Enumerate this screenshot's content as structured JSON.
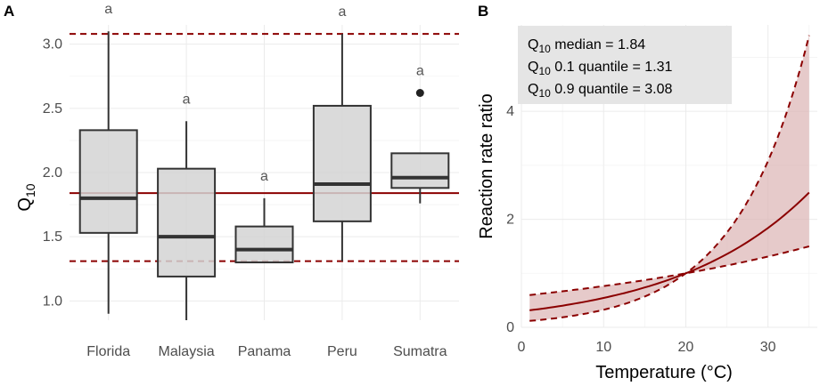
{
  "panels": {
    "a": "A",
    "b": "B"
  },
  "colors": {
    "dark_red": "#8b0000",
    "box_fill": "#d3d3d3",
    "band_fill": "#dcb3b3",
    "box_stroke": "#333333"
  },
  "chart_data": [
    {
      "type": "box",
      "panel": "A",
      "ylabel_base": "Q",
      "ylabel_sub": "10",
      "xlabel": "",
      "ylim": [
        0.85,
        3.15
      ],
      "yticks": [
        1.0,
        1.5,
        2.0,
        2.5,
        3.0
      ],
      "ytick_labels": [
        "1.0",
        "1.5",
        "2.0",
        "2.5",
        "3.0"
      ],
      "categories": [
        "Florida",
        "Malaysia",
        "Panama",
        "Peru",
        "Sumatra"
      ],
      "boxes": [
        {
          "category": "Florida",
          "min": 0.9,
          "q1": 1.53,
          "median": 1.8,
          "q3": 2.33,
          "max": 3.1,
          "outliers": [],
          "group": "a"
        },
        {
          "category": "Malaysia",
          "min": 0.85,
          "q1": 1.19,
          "median": 1.5,
          "q3": 2.03,
          "max": 2.4,
          "outliers": [],
          "group": "a"
        },
        {
          "category": "Panama",
          "min": 1.3,
          "q1": 1.3,
          "median": 1.4,
          "q3": 1.58,
          "max": 1.8,
          "outliers": [],
          "group": "a"
        },
        {
          "category": "Peru",
          "min": 1.31,
          "q1": 1.62,
          "median": 1.91,
          "q3": 2.52,
          "max": 3.08,
          "outliers": [],
          "group": "a"
        },
        {
          "category": "Sumatra",
          "min": 1.76,
          "q1": 1.88,
          "median": 1.96,
          "q3": 2.15,
          "max": 2.15,
          "outliers": [
            2.62
          ],
          "group": "a"
        }
      ],
      "reference_lines": [
        {
          "label": "median",
          "value": 1.84,
          "style": "solid"
        },
        {
          "label": "0.1 quantile",
          "value": 1.31,
          "style": "dashed"
        },
        {
          "label": "0.9 quantile",
          "value": 3.08,
          "style": "dashed"
        }
      ]
    },
    {
      "type": "line",
      "panel": "B",
      "xlabel": "Temperature (°C)",
      "ylabel": "Reaction rate ratio",
      "xlim": [
        0,
        36
      ],
      "ylim": [
        0,
        5.6
      ],
      "xticks": [
        0,
        10,
        20,
        30
      ],
      "yticks": [
        0,
        2,
        4
      ],
      "reference_temperature": 20,
      "x_range": [
        1,
        35
      ],
      "series": [
        {
          "name": "Q10 median",
          "q10": 1.84,
          "style": "solid"
        },
        {
          "name": "Q10 0.1 quantile",
          "q10": 1.31,
          "style": "dashed"
        },
        {
          "name": "Q10 0.9 quantile",
          "q10": 3.08,
          "style": "dashed"
        }
      ],
      "annotation": {
        "lines": [
          {
            "base": "Q",
            "sub": "10",
            "text": " median = 1.84"
          },
          {
            "base": "Q",
            "sub": "10",
            "text": " 0.1 quantile = 1.31"
          },
          {
            "base": "Q",
            "sub": "10",
            "text": " 0.9 quantile = 3.08"
          }
        ]
      }
    }
  ]
}
